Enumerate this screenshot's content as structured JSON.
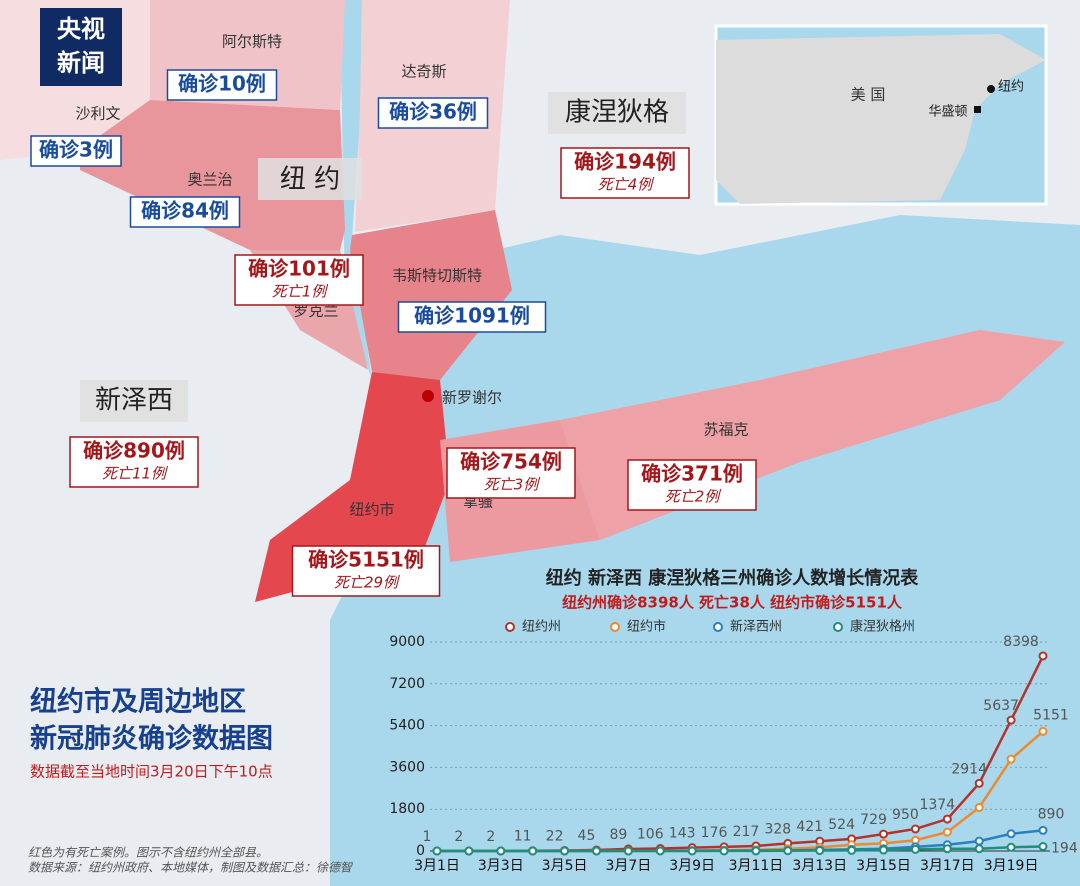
{
  "logo": [
    "央视",
    "新闻"
  ],
  "map": {
    "states": {
      "ny": "纽 约",
      "ct": "康涅狄格",
      "nj": "新泽西"
    },
    "places": {
      "ulster": "阿尔斯特",
      "dutchess": "达奇斯",
      "sullivan": "沙利文",
      "orange": "奥兰治",
      "rockland": "罗克兰",
      "westchester": "韦斯特切斯特",
      "new_rochelle": "新罗谢尔",
      "nyc": "纽约市",
      "nassau": "拿骚",
      "suffolk": "苏福克"
    },
    "boxes": {
      "ulster": {
        "cases": "确诊10例"
      },
      "dutchess": {
        "cases": "确诊36例"
      },
      "sullivan": {
        "cases": "确诊3例"
      },
      "orange": {
        "cases": "确诊84例"
      },
      "rockland": {
        "cases": "确诊101例",
        "deaths": "死亡1例"
      },
      "westchester": {
        "cases": "确诊1091例"
      },
      "ct": {
        "cases": "确诊194例",
        "deaths": "死亡4例"
      },
      "nj": {
        "cases": "确诊890例",
        "deaths": "死亡11例"
      },
      "nassau": {
        "cases": "确诊754例",
        "deaths": "死亡3例"
      },
      "suffolk": {
        "cases": "确诊371例",
        "deaths": "死亡2例"
      },
      "nyc": {
        "cases": "确诊5151例",
        "deaths": "死亡29例"
      }
    },
    "inset": {
      "country": "美 国",
      "dc": "华盛顿",
      "ny": "纽约"
    }
  },
  "title": [
    "纽约市及周边地区",
    "新冠肺炎确诊数据图"
  ],
  "as_of": "数据截至当地时间3月20日下午10点",
  "notes": [
    "红色为有死亡案例。图示不含纽约州全部县。",
    "数据来源：纽约州政府、本地媒体，制图及数据汇总：徐德智"
  ],
  "chart_data": {
    "type": "line",
    "title": "纽约 新泽西 康涅狄格三州确诊人数增长情况表",
    "subtitle": "纽约州确诊8398人 死亡38人 纽约市确诊5151人",
    "categories": [
      "3月1日",
      null,
      "3月3日",
      null,
      "3月5日",
      null,
      "3月7日",
      null,
      "3月9日",
      null,
      "3月11日",
      null,
      "3月13日",
      null,
      "3月15日",
      null,
      "3月17日",
      null,
      "3月19日",
      null
    ],
    "ylim": [
      0,
      9000
    ],
    "yticks": [
      0,
      1800,
      3600,
      5400,
      7200,
      9000
    ],
    "grid": true,
    "series": [
      {
        "name": "纽约州",
        "color": "#b5322b",
        "data_labels": "all",
        "values": [
          1,
          2,
          2,
          11,
          22,
          45,
          89,
          106,
          143,
          176,
          217,
          328,
          421,
          524,
          729,
          950,
          1374,
          2914,
          5637,
          8398
        ]
      },
      {
        "name": "纽约市",
        "color": "#ec8a2e",
        "data_labels": "last",
        "values": [
          0,
          0,
          1,
          1,
          3,
          5,
          11,
          11,
          19,
          36,
          52,
          95,
          154,
          269,
          329,
          463,
          814,
          1871,
          3954,
          5151
        ]
      },
      {
        "name": "新泽西州",
        "color": "#2a7fc0",
        "data_labels": "last",
        "values": [
          0,
          0,
          0,
          1,
          2,
          2,
          4,
          6,
          11,
          15,
          23,
          29,
          50,
          69,
          98,
          178,
          267,
          427,
          742,
          890
        ]
      },
      {
        "name": "康涅狄格州",
        "color": "#1f8e7a",
        "data_labels": "last",
        "values": [
          0,
          0,
          0,
          0,
          0,
          0,
          1,
          2,
          2,
          3,
          5,
          11,
          20,
          26,
          41,
          68,
          96,
          96,
          159,
          194
        ]
      }
    ]
  }
}
